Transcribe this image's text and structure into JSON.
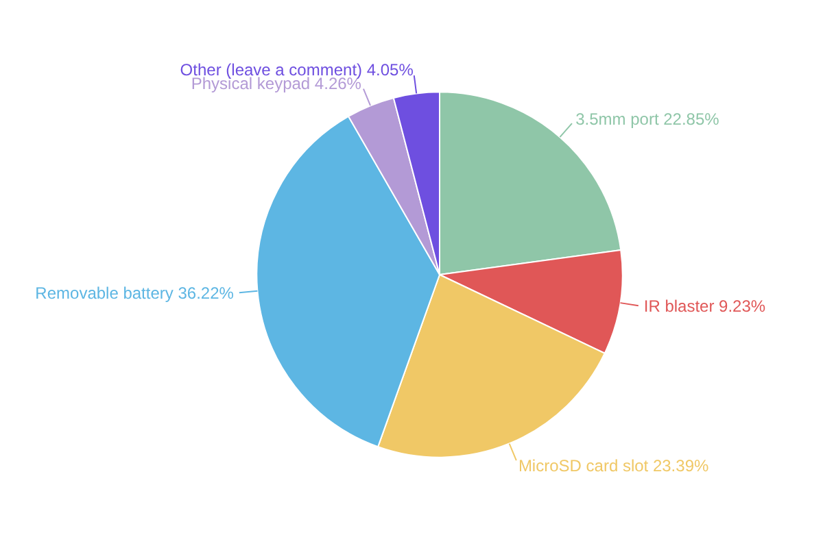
{
  "chart_data": {
    "type": "pie",
    "categories": [
      "3.5mm port",
      "IR blaster",
      "MicroSD card slot",
      "Removable battery",
      "Physical keypad",
      "Other (leave a comment)"
    ],
    "values": [
      22.85,
      9.23,
      23.39,
      36.22,
      4.26,
      4.05
    ],
    "colors": [
      "#8fc6a8",
      "#e05757",
      "#f0c866",
      "#5db6e3",
      "#b39ad6",
      "#6e4fe0"
    ],
    "value_labels": [
      "22.85%",
      "9.23%",
      "23.39%",
      "36.22%",
      "4.26%",
      "4.05%"
    ]
  }
}
